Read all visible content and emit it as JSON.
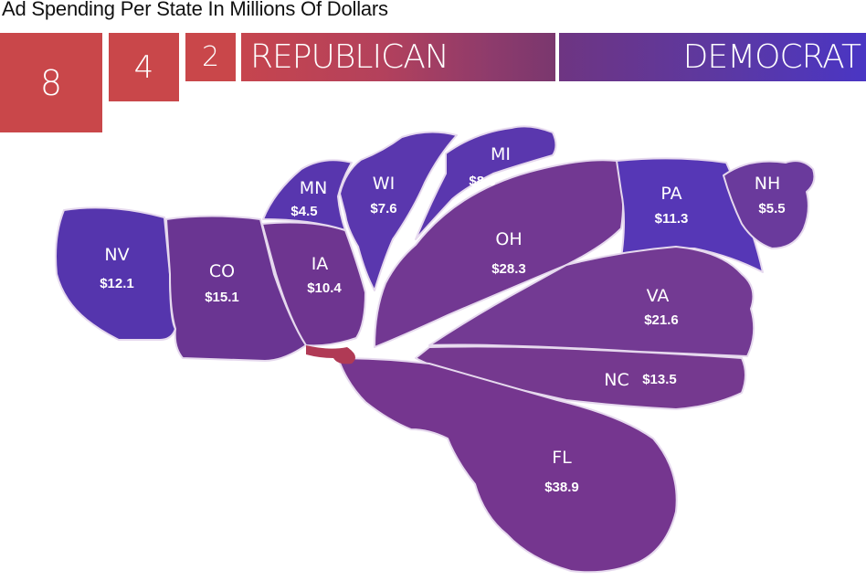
{
  "title": "Ad Spending Per State In Millions Of Dollars",
  "legend": {
    "squares": [
      "8",
      "4",
      "2"
    ],
    "republican": "REPUBLICAN",
    "democrat": "DEMOCRAT"
  },
  "colors": {
    "republican": "#c9474a",
    "democrat": "#4a36c4",
    "mixed": "#7a3a8e"
  },
  "states": [
    {
      "abbr": "NV",
      "value": "$12.1"
    },
    {
      "abbr": "CO",
      "value": "$15.1"
    },
    {
      "abbr": "IA",
      "value": "$10.4"
    },
    {
      "abbr": "MN",
      "value": "$4.5"
    },
    {
      "abbr": "WI",
      "value": "$7.6"
    },
    {
      "abbr": "MI",
      "value": "$8.8"
    },
    {
      "abbr": "OH",
      "value": "$28.3"
    },
    {
      "abbr": "PA",
      "value": "$11.3"
    },
    {
      "abbr": "NH",
      "value": "$5.5"
    },
    {
      "abbr": "VA",
      "value": "$21.6"
    },
    {
      "abbr": "NC",
      "value": "$13.5"
    },
    {
      "abbr": "FL",
      "value": "$38.9"
    }
  ]
}
